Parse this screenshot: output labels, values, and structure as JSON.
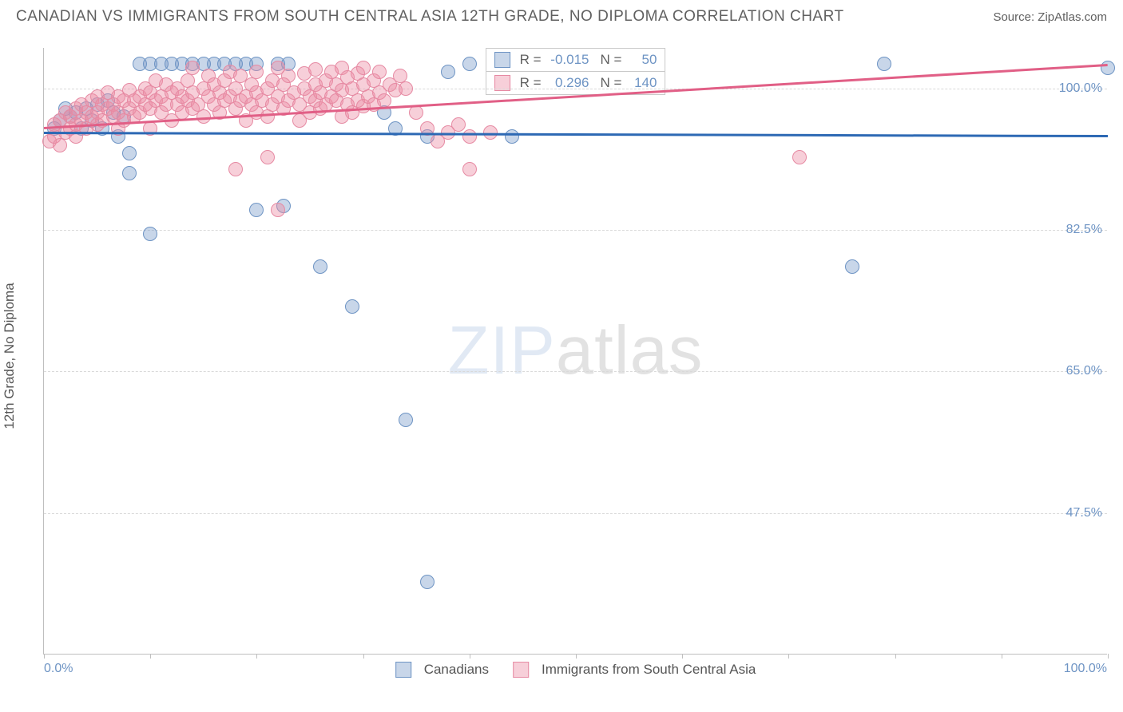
{
  "title": "CANADIAN VS IMMIGRANTS FROM SOUTH CENTRAL ASIA 12TH GRADE, NO DIPLOMA CORRELATION CHART",
  "source_label": "Source: ZipAtlas.com",
  "y_axis_title": "12th Grade, No Diploma",
  "watermark": {
    "part1": "ZIP",
    "part2": "atlas"
  },
  "chart": {
    "type": "scatter",
    "background_color": "#ffffff",
    "grid_color": "#d9d9d9",
    "axis_color": "#bfbfbf",
    "xlim": [
      0,
      100
    ],
    "ylim": [
      30,
      105
    ],
    "xtick_positions": [
      0,
      10,
      20,
      30,
      40,
      50,
      60,
      70,
      80,
      90,
      100
    ],
    "xtick_labels": {
      "0": "0.0%",
      "100": "100.0%"
    },
    "ytick_positions": [
      47.5,
      65.0,
      82.5,
      100.0
    ],
    "ytick_labels": [
      "47.5%",
      "65.0%",
      "82.5%",
      "100.0%"
    ],
    "marker_radius": 9,
    "marker_opacity": 0.55,
    "label_fontsize": 17,
    "tick_fontsize": 16,
    "tick_color": "#6e94c4"
  },
  "series": [
    {
      "name": "Canadians",
      "color": "#6e94c4",
      "fill": "rgba(110,148,196,0.38)",
      "stroke": "#6e94c4",
      "R": "-0.015",
      "N": "50",
      "trend": {
        "x1": 0,
        "y1": 94.6,
        "x2": 100,
        "y2": 94.2,
        "color": "#2d69b4",
        "width": 3
      },
      "points": [
        [
          1,
          95
        ],
        [
          1.5,
          96
        ],
        [
          2,
          97.5
        ],
        [
          2.5,
          96.5
        ],
        [
          3,
          97
        ],
        [
          3.5,
          95
        ],
        [
          4,
          97.5
        ],
        [
          4.5,
          96
        ],
        [
          5,
          98
        ],
        [
          5.5,
          95
        ],
        [
          6,
          98.5
        ],
        [
          6.5,
          97
        ],
        [
          7,
          94
        ],
        [
          7.5,
          96.5
        ],
        [
          8,
          92
        ],
        [
          9,
          103
        ],
        [
          10,
          103
        ],
        [
          11,
          103
        ],
        [
          12,
          103
        ],
        [
          13,
          103
        ],
        [
          14,
          103
        ],
        [
          15,
          103
        ],
        [
          16,
          103
        ],
        [
          17,
          103
        ],
        [
          18,
          103
        ],
        [
          19,
          103
        ],
        [
          20,
          103
        ],
        [
          22,
          103
        ],
        [
          23,
          103
        ],
        [
          8,
          89.5
        ],
        [
          10,
          82
        ],
        [
          20,
          85
        ],
        [
          22.5,
          85.5
        ],
        [
          26,
          78
        ],
        [
          29,
          73
        ],
        [
          32,
          97
        ],
        [
          33,
          95
        ],
        [
          34,
          59
        ],
        [
          36,
          39
        ],
        [
          36,
          94
        ],
        [
          38,
          102
        ],
        [
          40,
          103
        ],
        [
          44,
          94
        ],
        [
          76,
          78
        ],
        [
          79,
          103
        ],
        [
          100,
          102.5
        ]
      ]
    },
    {
      "name": "Immigrants from South Central Asia",
      "color": "#e68aa3",
      "fill": "rgba(235,140,165,0.42)",
      "stroke": "#e68aa3",
      "R": "0.296",
      "N": "140",
      "trend": {
        "x1": 0,
        "y1": 95.2,
        "x2": 100,
        "y2": 103.0,
        "color": "#e15f86",
        "width": 3
      },
      "points": [
        [
          0.5,
          93.5
        ],
        [
          1,
          94
        ],
        [
          1,
          95.5
        ],
        [
          1.5,
          93
        ],
        [
          1.5,
          96
        ],
        [
          2,
          94.5
        ],
        [
          2,
          97
        ],
        [
          2.5,
          95
        ],
        [
          2.5,
          96.5
        ],
        [
          3,
          94
        ],
        [
          3,
          95.5
        ],
        [
          3,
          97.5
        ],
        [
          3.5,
          96
        ],
        [
          3.5,
          98
        ],
        [
          4,
          95
        ],
        [
          4,
          97
        ],
        [
          4.5,
          96.5
        ],
        [
          4.5,
          98.5
        ],
        [
          5,
          95.5
        ],
        [
          5,
          97
        ],
        [
          5,
          99
        ],
        [
          5.5,
          96
        ],
        [
          5.5,
          98
        ],
        [
          6,
          97.5
        ],
        [
          6,
          99.5
        ],
        [
          6.5,
          96.5
        ],
        [
          6.5,
          98
        ],
        [
          7,
          97
        ],
        [
          7,
          99
        ],
        [
          7,
          95
        ],
        [
          7.5,
          98.5
        ],
        [
          7.5,
          96
        ],
        [
          8,
          97.5
        ],
        [
          8,
          99.8
        ],
        [
          8.5,
          96.5
        ],
        [
          8.5,
          98.5
        ],
        [
          9,
          97
        ],
        [
          9,
          99
        ],
        [
          9.5,
          98
        ],
        [
          9.5,
          100
        ],
        [
          10,
          97.5
        ],
        [
          10,
          99.5
        ],
        [
          10,
          95
        ],
        [
          10.5,
          98.5
        ],
        [
          10.5,
          101
        ],
        [
          11,
          97
        ],
        [
          11,
          99
        ],
        [
          11.5,
          98
        ],
        [
          11.5,
          100.5
        ],
        [
          12,
          96
        ],
        [
          12,
          99.5
        ],
        [
          12.5,
          98
        ],
        [
          12.5,
          100
        ],
        [
          13,
          97
        ],
        [
          13,
          99
        ],
        [
          13.5,
          98.5
        ],
        [
          13.5,
          101
        ],
        [
          14,
          97.5
        ],
        [
          14,
          99.5
        ],
        [
          14,
          102.5
        ],
        [
          14.5,
          98
        ],
        [
          15,
          96.5
        ],
        [
          15,
          100
        ],
        [
          15.5,
          99
        ],
        [
          15.5,
          101.5
        ],
        [
          16,
          98
        ],
        [
          16,
          100.5
        ],
        [
          16.5,
          97
        ],
        [
          16.5,
          99.5
        ],
        [
          17,
          98.5
        ],
        [
          17,
          101
        ],
        [
          17.5,
          99
        ],
        [
          17.5,
          102
        ],
        [
          18,
          97.5
        ],
        [
          18,
          100
        ],
        [
          18.5,
          98.5
        ],
        [
          18.5,
          101.5
        ],
        [
          19,
          96
        ],
        [
          19,
          99
        ],
        [
          19.5,
          98
        ],
        [
          19.5,
          100.5
        ],
        [
          20,
          97
        ],
        [
          20,
          99.5
        ],
        [
          20,
          102
        ],
        [
          20.5,
          98.5
        ],
        [
          21,
          96.5
        ],
        [
          21,
          100
        ],
        [
          21.5,
          98
        ],
        [
          21.5,
          101
        ],
        [
          22,
          99
        ],
        [
          22,
          102.5
        ],
        [
          22.5,
          97.5
        ],
        [
          22.5,
          100.5
        ],
        [
          23,
          98.5
        ],
        [
          23,
          101.5
        ],
        [
          23.5,
          99.5
        ],
        [
          24,
          96
        ],
        [
          24,
          98
        ],
        [
          24.5,
          100
        ],
        [
          24.5,
          101.8
        ],
        [
          25,
          97
        ],
        [
          25,
          99
        ],
        [
          25.5,
          98.5
        ],
        [
          25.5,
          100.5
        ],
        [
          25.5,
          102.3
        ],
        [
          26,
          97.5
        ],
        [
          26,
          99.5
        ],
        [
          26.5,
          98
        ],
        [
          26.5,
          101
        ],
        [
          27,
          99
        ],
        [
          27,
          102
        ],
        [
          27.5,
          98.5
        ],
        [
          27.5,
          100.5
        ],
        [
          28,
          96.5
        ],
        [
          28,
          99.8
        ],
        [
          28,
          102.5
        ],
        [
          28.5,
          98
        ],
        [
          28.5,
          101.3
        ],
        [
          29,
          97
        ],
        [
          29,
          100
        ],
        [
          29.5,
          98.5
        ],
        [
          29.5,
          101.8
        ],
        [
          30,
          97.8
        ],
        [
          30,
          100.5
        ],
        [
          30,
          102.5
        ],
        [
          30.5,
          99
        ],
        [
          31,
          98
        ],
        [
          31,
          101
        ],
        [
          31.5,
          99.5
        ],
        [
          31.5,
          102
        ],
        [
          32,
          98.5
        ],
        [
          32.5,
          100.5
        ],
        [
          33,
          99.8
        ],
        [
          33.5,
          101.5
        ],
        [
          34,
          100
        ],
        [
          35,
          97
        ],
        [
          36,
          95
        ],
        [
          37,
          93.5
        ],
        [
          38,
          94.5
        ],
        [
          39,
          95.5
        ],
        [
          40,
          94
        ],
        [
          42,
          94.5
        ],
        [
          40,
          90
        ],
        [
          22,
          85
        ],
        [
          18,
          90
        ],
        [
          21,
          91.5
        ],
        [
          71,
          91.5
        ]
      ]
    }
  ],
  "legend": {
    "series1_label": "Canadians",
    "series2_label": "Immigrants from South Central Asia"
  }
}
